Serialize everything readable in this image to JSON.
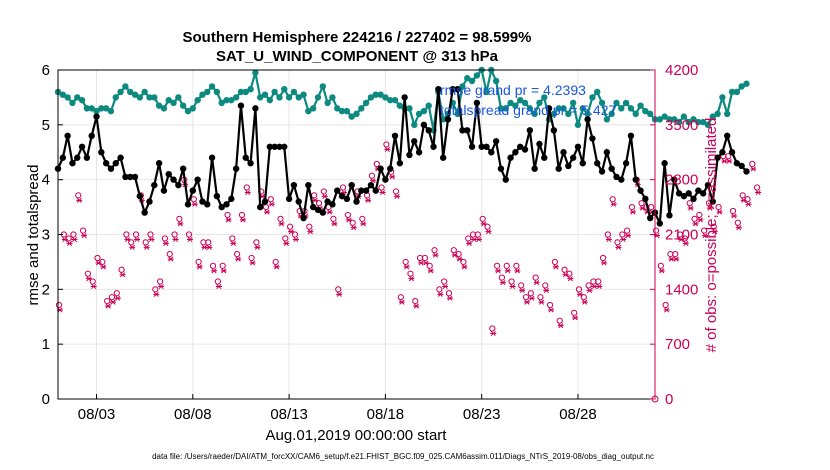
{
  "chart_data": {
    "type": "line",
    "title_line1": "Southern Hemisphere 224216 / 227402 = 98.599%",
    "title_line2": "SAT_U_WIND_COMPONENT @ 313 hPa",
    "xlabel": "Aug.01,2019 00:00:00 start",
    "ylabel_left": "rmse and totalspread",
    "ylabel_right": "# of obs: o=possible; ×=assimilated",
    "footer": "data file: /Users/raeder/DAI/ATM_forcXX/CAM6_setup/f.e21.FHIST_BGC.f09_025.CAM6assim.011/Diags_NTrS_2019-08/obs_diag_output.nc",
    "x_tick_labels": [
      "08/03",
      "08/08",
      "08/13",
      "08/18",
      "08/23",
      "08/28"
    ],
    "x_tick_days": [
      3,
      8,
      13,
      18,
      23,
      28
    ],
    "xlim_days": [
      1,
      32.0
    ],
    "ylim_left": [
      0,
      6
    ],
    "y_ticks_left": [
      "0",
      "1",
      "2",
      "3",
      "4",
      "5",
      "6"
    ],
    "ylim_right": [
      0,
      4200
    ],
    "y_ticks_right": [
      "0",
      "700",
      "1400",
      "2100",
      "2800",
      "3500",
      "4200"
    ],
    "legend": {
      "location": "top-right",
      "entries": [
        "rmse grand pr = 4.2393",
        "totalspread grand pr = 5.427"
      ]
    },
    "colors": {
      "rmse": "#000000",
      "spread": "#0c8a80",
      "obs": "#cc0055",
      "legend_text": "#1a55e0",
      "grid": "#e6e6e6"
    },
    "series": [
      {
        "name": "rmse",
        "x_start_day": 1.0,
        "x_step_day": 0.25,
        "values": [
          4.2,
          4.4,
          4.8,
          4.3,
          4.4,
          4.6,
          4.4,
          4.8,
          5.15,
          4.5,
          4.3,
          4.2,
          4.3,
          4.4,
          4.05,
          4.05,
          4.05,
          3.7,
          3.4,
          3.6,
          3.9,
          4.3,
          3.8,
          4.1,
          4.0,
          3.9,
          4.2,
          3.55,
          3.8,
          4.0,
          3.6,
          3.55,
          4.4,
          3.7,
          3.5,
          3.55,
          3.65,
          4.2,
          5.35,
          4.4,
          4.3,
          5.3,
          3.5,
          3.6,
          4.6,
          4.6,
          4.6,
          4.6,
          3.65,
          3.9,
          3.6,
          3.3,
          3.9,
          3.5,
          3.45,
          3.4,
          3.6,
          3.55,
          3.8,
          3.7,
          3.65,
          3.9,
          3.6,
          3.8,
          3.8,
          3.9,
          3.8,
          4.2,
          4.0,
          4.2,
          4.8,
          4.3,
          5.5,
          4.45,
          4.7,
          4.5,
          5.0,
          4.9,
          4.6,
          5.65,
          4.4,
          5.1,
          5.65,
          5.65,
          4.9,
          4.9,
          4.6,
          5.4,
          4.6,
          4.6,
          4.5,
          4.7,
          4.2,
          4.0,
          4.4,
          4.5,
          4.6,
          4.55,
          4.9,
          4.2,
          4.65,
          4.4,
          5.3,
          4.9,
          4.2,
          4.5,
          4.25,
          4.4,
          4.6,
          4.3,
          5.1,
          4.75,
          4.3,
          4.15,
          4.5,
          4.2,
          4.05,
          4.0,
          4.3,
          4.8,
          4.0,
          3.8,
          3.65,
          3.3,
          3.4,
          3.2,
          4.3,
          3.35,
          4.0,
          3.75,
          3.7,
          3.75,
          3.65,
          3.8,
          3.75,
          3.9,
          3.6,
          4.4,
          4.5,
          4.8,
          4.5,
          4.3,
          4.25,
          4.15
        ]
      },
      {
        "name": "totalspread",
        "x_start_day": 1.0,
        "x_step_day": 0.25,
        "values": [
          5.6,
          5.55,
          5.5,
          5.4,
          5.5,
          5.45,
          5.3,
          5.3,
          5.25,
          5.3,
          5.3,
          5.25,
          5.5,
          5.6,
          5.7,
          5.6,
          5.55,
          5.5,
          5.6,
          5.5,
          5.5,
          5.35,
          5.3,
          5.45,
          5.4,
          5.5,
          5.35,
          5.25,
          5.3,
          5.45,
          5.55,
          5.6,
          5.7,
          5.6,
          5.4,
          5.45,
          5.45,
          5.5,
          5.6,
          5.6,
          5.65,
          5.95,
          5.5,
          5.55,
          5.45,
          5.6,
          5.5,
          5.65,
          5.5,
          5.6,
          5.5,
          5.55,
          5.25,
          5.3,
          5.5,
          5.7,
          5.4,
          5.5,
          5.3,
          5.25,
          5.25,
          5.15,
          5.2,
          5.3,
          5.4,
          5.5,
          5.55,
          5.55,
          5.5,
          5.45,
          5.45,
          5.35,
          5.3,
          5.3,
          5.0,
          5.2,
          5.25,
          5.35,
          4.9,
          5.6,
          5.1,
          5.2,
          5.4,
          5.2,
          5.7,
          5.85,
          5.8,
          5.9,
          6.0,
          5.6,
          6.0,
          5.8,
          5.3,
          5.3,
          5.4,
          5.35,
          5.45,
          5.4,
          5.3,
          5.2,
          5.4,
          5.5,
          5.1,
          5.2,
          5.3,
          5.3,
          5.2,
          5.4,
          5.0,
          5.3,
          5.2,
          5.5,
          5.6,
          5.4,
          5.1,
          5.2,
          5.4,
          5.3,
          5.4,
          5.3,
          5.2,
          5.35,
          5.25,
          5.2,
          5.1,
          5.1,
          5.15,
          5.1,
          5.1,
          5.05,
          5.15,
          5.05,
          5.1,
          5.05,
          5.05,
          5.0,
          5.15,
          5.2,
          5.5,
          5.2,
          5.6,
          5.6,
          5.7,
          5.75
        ]
      },
      {
        "name": "obs possible",
        "axis": "right",
        "x_start_day": 1.0,
        "x_step_day": 0.25,
        "values": [
          1200,
          2100,
          2050,
          2100,
          2600,
          2150,
          1600,
          1500,
          1800,
          1750,
          1250,
          1300,
          1350,
          1650,
          2100,
          2000,
          2100,
          2600,
          2000,
          2100,
          1400,
          1500,
          2050,
          1850,
          2100,
          2300,
          2800,
          2100,
          2550,
          1750,
          2000,
          2000,
          1700,
          1500,
          1700,
          2350,
          2050,
          1850,
          2350,
          2700,
          1800,
          2000,
          2650,
          2450,
          2550,
          1750,
          2300,
          2050,
          2200,
          2100,
          2400,
          2400,
          2200,
          2600,
          2500,
          2650,
          2450,
          2300,
          1400,
          2700,
          2350,
          2250,
          2650,
          2300,
          2600,
          2850,
          3000,
          2700,
          3250,
          2900,
          2650,
          1300,
          1750,
          1600,
          1250,
          1800,
          1800,
          1700,
          1900,
          1400,
          1500,
          1350,
          1900,
          1850,
          1750,
          2050,
          2100,
          2100,
          2300,
          2200,
          900,
          1700,
          1550,
          1700,
          1500,
          1700,
          1450,
          1300,
          1350,
          1550,
          1300,
          1450,
          1200,
          1750,
          1000,
          1650,
          1600,
          1100,
          1400,
          1300,
          1450,
          1500,
          1500,
          1800,
          2100,
          2550,
          2000,
          2100,
          2150,
          2450,
          2800,
          2500,
          2450,
          2450,
          2150,
          1700,
          1200,
          1850,
          1850,
          2100,
          2050,
          2500,
          2300,
          2350,
          2150,
          2500,
          2200,
          2450,
          3100,
          3100,
          2400,
          2250,
          2600,
          2550,
          3000,
          2700
        ]
      },
      {
        "name": "obs assimilated",
        "axis": "right",
        "x_start_day": 1.0,
        "x_step_day": 0.25,
        "values": [
          1200,
          2100,
          2050,
          2100,
          2600,
          2150,
          1600,
          1500,
          1800,
          1750,
          1250,
          1300,
          1350,
          1650,
          2100,
          2000,
          2100,
          2600,
          2000,
          2100,
          1400,
          1500,
          2050,
          1850,
          2100,
          2300,
          2800,
          2100,
          2550,
          1750,
          2000,
          2000,
          1700,
          1500,
          1700,
          2350,
          2050,
          1850,
          2350,
          2700,
          1800,
          2000,
          2650,
          2450,
          2550,
          1750,
          2300,
          2050,
          2200,
          2100,
          2400,
          2400,
          2200,
          2600,
          2500,
          2650,
          2450,
          2300,
          1400,
          2700,
          2350,
          2250,
          2650,
          2300,
          2600,
          2850,
          3000,
          2700,
          3250,
          2900,
          2650,
          1300,
          1750,
          1600,
          1250,
          1800,
          1800,
          1700,
          1900,
          1400,
          1500,
          1350,
          1900,
          1850,
          1750,
          2050,
          2100,
          2100,
          2300,
          2200,
          900,
          1700,
          1550,
          1700,
          1500,
          1700,
          1450,
          1300,
          1350,
          1550,
          1300,
          1450,
          1200,
          1750,
          1000,
          1650,
          1600,
          1100,
          1400,
          1300,
          1450,
          1500,
          1500,
          1800,
          2100,
          2550,
          2000,
          2100,
          2150,
          2450,
          2800,
          2500,
          2450,
          2450,
          2150,
          1700,
          1200,
          1850,
          1850,
          2100,
          2050,
          2500,
          2300,
          2350,
          2150,
          2500,
          2200,
          2450,
          3100,
          3100,
          2400,
          2250,
          2600,
          2550,
          3000,
          2700
        ]
      }
    ]
  }
}
